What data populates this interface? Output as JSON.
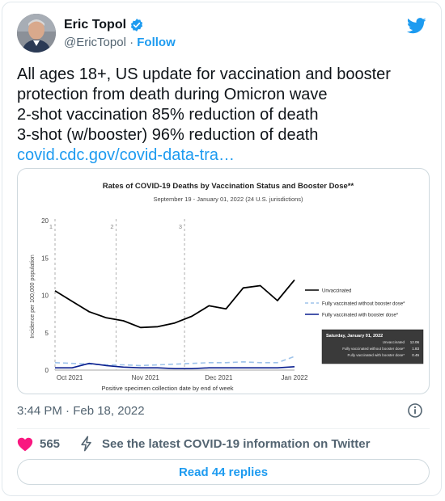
{
  "author": {
    "name": "Eric Topol",
    "handle": "@EricTopol",
    "separator": "·",
    "follow_label": "Follow"
  },
  "tweet": {
    "lines": [
      "All ages 18+, US update for vaccination and booster",
      "protection from death during Omicron wave",
      "2-shot vaccination 85% reduction of death",
      "3-shot (w/booster) 96% reduction of death"
    ],
    "link": "covid.cdc.gov/covid-data-tra…",
    "timestamp": "3:44 PM · Feb 18, 2022"
  },
  "actions": {
    "like_count": "565",
    "covid_info": "See the latest COVID-19 information on Twitter",
    "read_replies": "Read 44 replies"
  },
  "colors": {
    "accent": "#1d9bf0",
    "like": "#f91880"
  },
  "icons": {
    "verified": "verified-badge-icon",
    "bird": "twitter-bird-icon",
    "info": "info-icon",
    "heart": "heart-icon",
    "lightning": "lightning-icon"
  },
  "chart_data": {
    "type": "line",
    "title": "Rates of COVID-19 Deaths by Vaccination Status and Booster Dose**",
    "subtitle": "September 19 - January 01, 2022 (24 U.S. jurisdictions)",
    "xlabel": "Positive specimen collection date by end of week",
    "ylabel": "Incidence per 100,000 population",
    "ylim": [
      0,
      20
    ],
    "yticks": [
      0,
      5,
      10,
      15,
      20
    ],
    "xlim": [
      "2021-09-25",
      "2022-01-01"
    ],
    "xticks": [
      {
        "date": "2021-10-01",
        "label": "Oct 2021"
      },
      {
        "date": "2021-11-01",
        "label": "Nov 2021"
      },
      {
        "date": "2021-12-01",
        "label": "Dec 2021"
      },
      {
        "date": "2022-01-01",
        "label": "Jan 2022"
      }
    ],
    "x": [
      "2021-09-25",
      "2021-10-02",
      "2021-10-09",
      "2021-10-16",
      "2021-10-23",
      "2021-10-30",
      "2021-11-06",
      "2021-11-13",
      "2021-11-20",
      "2021-11-27",
      "2021-12-04",
      "2021-12-11",
      "2021-12-18",
      "2021-12-25",
      "2022-01-01"
    ],
    "markers": [
      {
        "date": "2021-09-25",
        "label": "1"
      },
      {
        "date": "2021-10-20",
        "label": "2"
      },
      {
        "date": "2021-11-17",
        "label": "3"
      }
    ],
    "series": [
      {
        "name": "Unvaccinated",
        "color": "#000000",
        "dash": "none",
        "values": [
          10.6,
          9.2,
          7.8,
          7.0,
          6.6,
          5.7,
          5.8,
          6.3,
          7.2,
          8.6,
          8.2,
          11.0,
          11.3,
          9.3,
          12.06
        ]
      },
      {
        "name": "Fully vaccinated without booster dose*",
        "color": "#9ec3ea",
        "dash": "6,4",
        "values": [
          1.0,
          0.9,
          0.8,
          0.7,
          0.7,
          0.6,
          0.7,
          0.8,
          0.9,
          1.0,
          1.0,
          1.1,
          1.0,
          1.0,
          1.83
        ]
      },
      {
        "name": "Fully vaccinated with booster dose*",
        "color": "#0a1f8f",
        "dash": "none",
        "values": [
          0.3,
          0.3,
          0.9,
          0.6,
          0.4,
          0.3,
          0.3,
          0.2,
          0.2,
          0.3,
          0.3,
          0.3,
          0.3,
          0.3,
          0.45
        ]
      }
    ],
    "tooltip": {
      "title": "Saturday, January 01, 2022",
      "rows": [
        {
          "label": "Unvaccinated",
          "value": "12.06"
        },
        {
          "label": "Fully vaccinated without booster dose*",
          "value": "1.83"
        },
        {
          "label": "Fully vaccinated with booster dose*",
          "value": "0.45"
        }
      ]
    },
    "legend_position": "right",
    "grid": false
  }
}
